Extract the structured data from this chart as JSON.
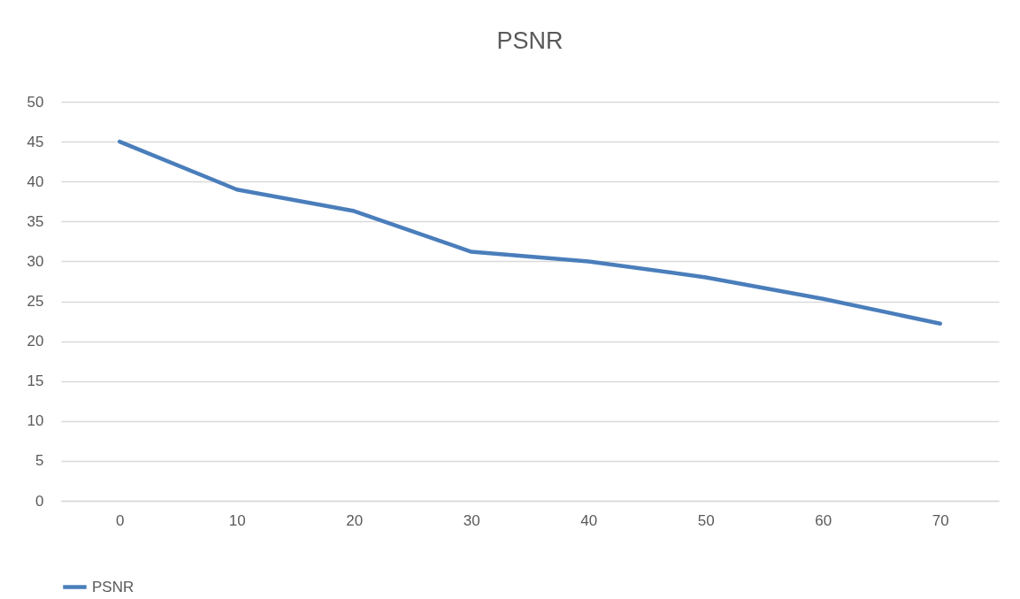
{
  "chart_data": {
    "type": "line",
    "title": "PSNR",
    "categories": [
      "0",
      "10",
      "20",
      "30",
      "40",
      "50",
      "60",
      "70"
    ],
    "series": [
      {
        "name": "PSNR",
        "color": "#4a7ebb",
        "values": [
          45,
          39,
          36.3,
          31.2,
          30,
          28,
          25.3,
          22.2
        ]
      }
    ],
    "ylim": [
      0,
      50
    ],
    "yticks": [
      0,
      5,
      10,
      15,
      20,
      25,
      30,
      35,
      40,
      45,
      50
    ],
    "grid": "y",
    "legend": "bottom",
    "marker": "none",
    "line_style": "solid"
  }
}
